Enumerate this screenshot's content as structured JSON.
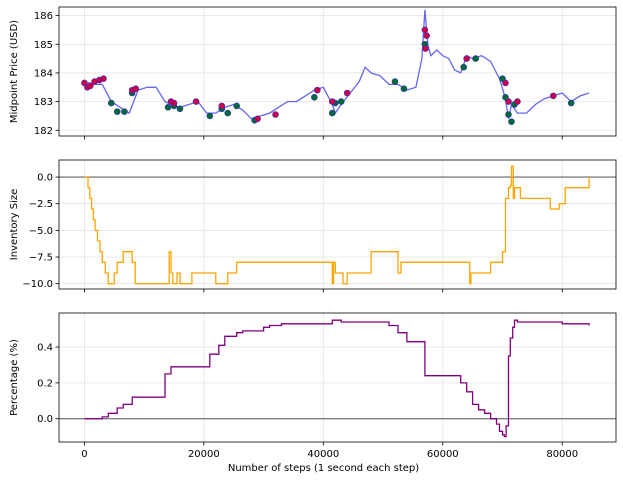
{
  "chart_data": [
    {
      "type": "line",
      "ylabel": "Midpoint Price (USD)",
      "xlabel": "",
      "xlim": [
        -4250,
        89000
      ],
      "ylim": [
        181.8,
        186.3
      ],
      "xticks": [
        0,
        20000,
        40000,
        60000,
        80000
      ],
      "yticks": [
        182,
        183,
        184,
        185,
        186
      ],
      "ytick_labels": [
        "182",
        "183",
        "184",
        "185",
        "186"
      ],
      "grid": true,
      "series": [
        {
          "color": "#6666ee",
          "x": [
            0,
            1500,
            3000,
            4500,
            6000,
            7500,
            9000,
            10500,
            12000,
            13500,
            14500,
            16000,
            17500,
            19000,
            20500,
            22000,
            23500,
            25000,
            26500,
            28000,
            29500,
            31000,
            32500,
            34000,
            35500,
            37000,
            38500,
            40000,
            41500,
            42000,
            43000,
            44500,
            46000,
            47000,
            48000,
            49500,
            51000,
            52500,
            54000,
            55500,
            56500,
            57000,
            57500,
            58000,
            59000,
            60000,
            61000,
            62000,
            63000,
            64000,
            65000,
            66500,
            68000,
            69500,
            70500,
            71000,
            71500,
            72500,
            74000,
            75500,
            77000,
            78500,
            80000,
            81500,
            83000,
            84500
          ],
          "values": [
            183.7,
            183.6,
            183.6,
            183.0,
            182.8,
            182.6,
            183.4,
            183.5,
            183.5,
            183.0,
            182.9,
            182.8,
            182.9,
            183.0,
            182.6,
            182.6,
            182.8,
            182.9,
            182.7,
            182.4,
            182.5,
            182.6,
            182.8,
            183.0,
            183.0,
            183.2,
            183.4,
            183.5,
            182.9,
            182.6,
            182.9,
            183.3,
            183.7,
            184.2,
            184.0,
            183.9,
            183.6,
            183.6,
            183.4,
            183.5,
            184.5,
            186.2,
            185.0,
            184.6,
            184.8,
            184.6,
            184.5,
            184.1,
            184.0,
            184.6,
            184.5,
            184.6,
            184.4,
            183.8,
            183.1,
            182.4,
            182.9,
            182.6,
            182.6,
            182.9,
            183.1,
            183.2,
            183.3,
            183.0,
            183.2,
            183.3
          ]
        }
      ],
      "markers": {
        "buy_color": "#006b2e",
        "sell_color": "#cc0044",
        "outline_color": "#3333cc",
        "buy": [
          {
            "x": 4500,
            "y": 182.95
          },
          {
            "x": 5500,
            "y": 182.65
          },
          {
            "x": 6700,
            "y": 182.65
          },
          {
            "x": 8000,
            "y": 183.3
          },
          {
            "x": 14000,
            "y": 182.8
          },
          {
            "x": 15000,
            "y": 182.85
          },
          {
            "x": 16000,
            "y": 182.75
          },
          {
            "x": 21000,
            "y": 182.5
          },
          {
            "x": 23000,
            "y": 182.75
          },
          {
            "x": 24000,
            "y": 182.6
          },
          {
            "x": 25500,
            "y": 182.85
          },
          {
            "x": 28500,
            "y": 182.35
          },
          {
            "x": 38500,
            "y": 183.15
          },
          {
            "x": 41500,
            "y": 182.6
          },
          {
            "x": 42000,
            "y": 182.95
          },
          {
            "x": 43000,
            "y": 183.0
          },
          {
            "x": 52000,
            "y": 183.7
          },
          {
            "x": 53500,
            "y": 183.45
          },
          {
            "x": 57000,
            "y": 185.0
          },
          {
            "x": 63500,
            "y": 184.2
          },
          {
            "x": 65500,
            "y": 184.5
          },
          {
            "x": 70000,
            "y": 183.8
          },
          {
            "x": 70500,
            "y": 183.15
          },
          {
            "x": 71000,
            "y": 182.55
          },
          {
            "x": 71500,
            "y": 182.3
          },
          {
            "x": 72000,
            "y": 182.9
          },
          {
            "x": 81500,
            "y": 182.95
          }
        ],
        "sell": [
          {
            "x": 0,
            "y": 183.65
          },
          {
            "x": 500,
            "y": 183.5
          },
          {
            "x": 1000,
            "y": 183.55
          },
          {
            "x": 1700,
            "y": 183.7
          },
          {
            "x": 2500,
            "y": 183.75
          },
          {
            "x": 3200,
            "y": 183.8
          },
          {
            "x": 8000,
            "y": 183.4
          },
          {
            "x": 8600,
            "y": 183.45
          },
          {
            "x": 14500,
            "y": 183.0
          },
          {
            "x": 15000,
            "y": 182.95
          },
          {
            "x": 18700,
            "y": 183.0
          },
          {
            "x": 23000,
            "y": 182.85
          },
          {
            "x": 29000,
            "y": 182.4
          },
          {
            "x": 32000,
            "y": 182.55
          },
          {
            "x": 39000,
            "y": 183.4
          },
          {
            "x": 41500,
            "y": 183.0
          },
          {
            "x": 44000,
            "y": 183.3
          },
          {
            "x": 57000,
            "y": 185.5
          },
          {
            "x": 57300,
            "y": 185.3
          },
          {
            "x": 57100,
            "y": 184.85
          },
          {
            "x": 64000,
            "y": 184.5
          },
          {
            "x": 70500,
            "y": 183.65
          },
          {
            "x": 71000,
            "y": 183.0
          },
          {
            "x": 72500,
            "y": 183.0
          },
          {
            "x": 78500,
            "y": 183.2
          }
        ]
      }
    },
    {
      "type": "line",
      "ylabel": "Inventory Size",
      "xlabel": "",
      "xlim": [
        -4250,
        89000
      ],
      "ylim": [
        -10.5,
        1.6
      ],
      "xticks": [
        0,
        20000,
        40000,
        60000,
        80000
      ],
      "yticks": [
        0.0,
        -2.5,
        -5.0,
        -7.5,
        -10.0
      ],
      "ytick_labels": [
        "0.0",
        "−2.5",
        "−5.0",
        "−7.5",
        "−10.0"
      ],
      "grid": true,
      "baseline": 0,
      "baseline_color": "#808080",
      "series": [
        {
          "color": "#ffa500",
          "step": true,
          "x": [
            0,
            600,
            900,
            1200,
            1500,
            1800,
            2200,
            2600,
            3000,
            3500,
            4000,
            5000,
            5500,
            6000,
            6500,
            7000,
            8000,
            8500,
            14000,
            14200,
            14500,
            14800,
            15500,
            16000,
            18000,
            21000,
            22000,
            24000,
            25000,
            25500,
            30000,
            38000,
            41500,
            41700,
            42000,
            43000,
            43300,
            44000,
            47000,
            48000,
            52000,
            52500,
            53000,
            58000,
            64500,
            64700,
            66500,
            67500,
            68000,
            69000,
            70000,
            70500,
            71000,
            71300,
            71500,
            71800,
            72000,
            72500,
            73000,
            75000,
            76000,
            78000,
            79500,
            80500,
            84500
          ],
          "values": [
            0,
            -1,
            -2,
            -3,
            -4,
            -5,
            -6,
            -7,
            -8,
            -9,
            -10,
            -9,
            -8,
            -8,
            -7,
            -7,
            -8,
            -10,
            -10,
            -7,
            -9,
            -10,
            -9,
            -10,
            -9,
            -9,
            -10,
            -9,
            -9,
            -8,
            -8,
            -8,
            -10,
            -8,
            -9,
            -9,
            -10,
            -9,
            -9,
            -7,
            -7,
            -9,
            -8,
            -8,
            -10,
            -9,
            -9,
            -9,
            -8,
            -8,
            -7,
            -2,
            -1,
            -0.8,
            1,
            -2,
            -1,
            -1,
            -2,
            -2,
            -2,
            -3,
            -2.5,
            -1,
            0
          ]
        }
      ]
    },
    {
      "type": "line",
      "ylabel": "Percentage (%)",
      "xlabel": "Number of steps (1 second each step)",
      "xlim": [
        -4250,
        89000
      ],
      "ylim": [
        -0.13,
        0.59
      ],
      "xticks": [
        0,
        20000,
        40000,
        60000,
        80000
      ],
      "xtick_labels": [
        "0",
        "20000",
        "40000",
        "60000",
        "80000"
      ],
      "yticks": [
        0.0,
        0.2,
        0.4
      ],
      "ytick_labels": [
        "0.0",
        "0.2",
        "0.4"
      ],
      "grid": true,
      "baseline": 0,
      "baseline_color": "#808080",
      "series": [
        {
          "color": "#800080",
          "step": true,
          "x": [
            0,
            3000,
            4000,
            5500,
            6500,
            8000,
            13500,
            14500,
            15500,
            21000,
            22500,
            23500,
            25500,
            26500,
            30000,
            31000,
            33000,
            41500,
            43000,
            48000,
            51000,
            52500,
            54000,
            57000,
            63000,
            64000,
            65000,
            66000,
            67000,
            68000,
            69000,
            69500,
            70000,
            70300,
            70600,
            71000,
            71300,
            71700,
            72000,
            72500,
            80000,
            84500
          ],
          "values": [
            0,
            0.01,
            0.03,
            0.06,
            0.08,
            0.12,
            0.25,
            0.29,
            0.29,
            0.36,
            0.41,
            0.46,
            0.48,
            0.49,
            0.51,
            0.52,
            0.53,
            0.55,
            0.54,
            0.54,
            0.52,
            0.48,
            0.43,
            0.24,
            0.2,
            0.15,
            0.08,
            0.05,
            0.03,
            0.0,
            -0.03,
            -0.07,
            -0.09,
            -0.1,
            -0.04,
            0.35,
            0.45,
            0.51,
            0.55,
            0.54,
            0.53,
            0.52
          ]
        }
      ]
    }
  ]
}
